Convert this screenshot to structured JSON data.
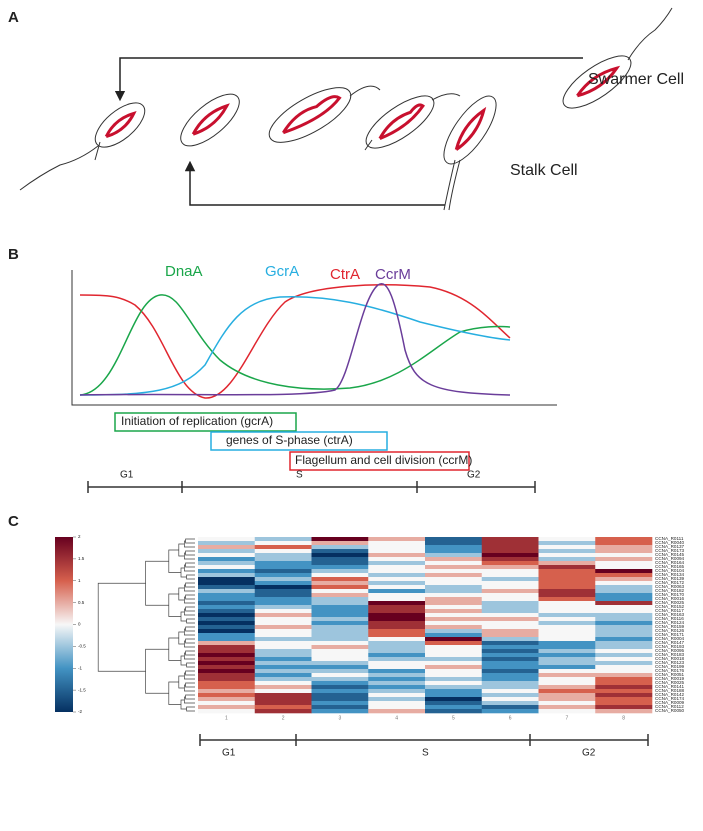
{
  "panel_a": {
    "label": "A",
    "swarmer": "Swarmer Cell",
    "stalk": "Stalk Cell"
  },
  "panel_b": {
    "label": "B",
    "curves": [
      "DnaA",
      "GcrA",
      "CtrA",
      "CcrM"
    ],
    "boxes": [
      "Initiation of replication (gcrA)",
      "genes of S-phase (ctrA)",
      "Flagellum and cell division (ccrM)"
    ],
    "phases": [
      "G1",
      "S",
      "G2"
    ]
  },
  "panel_c": {
    "label": "C",
    "phases": [
      "G1",
      "S",
      "G2"
    ],
    "heatmap": {
      "type": "heatmap",
      "column_labels": [
        "1",
        "2",
        "3",
        "4",
        "5",
        "6",
        "7",
        "8"
      ],
      "row_labels": [
        "CCNA_R0111",
        "CCNA_R0040",
        "CCNA_R0137",
        "CCNA_R0173",
        "CCNA_R0145",
        "CCNA_R0094",
        "CCNA_R0164",
        "CCNA_R0165",
        "CCNA_R0104",
        "CCNA_R0134",
        "CCNA_R0139",
        "CCNA_R0172",
        "CCNA_R0063",
        "CCNA_R0182",
        "CCNA_R0170",
        "CCNA_R0016",
        "CCNA_R0025",
        "CCNA_R0152",
        "CCNA_R0117",
        "CCNA_R0163",
        "CCNA_R0116",
        "CCNA_R0124",
        "CCNA_R0159",
        "CCNA_R0126",
        "CCNA_R0171",
        "CCNA_R0004",
        "CCNA_R0147",
        "CCNA_R0193",
        "CCNA_R0095",
        "CCNA_R0183",
        "CCNA_R0018",
        "CCNA_R0123",
        "CCNA_R0199",
        "CCNA_R0176",
        "CCNA_R0051",
        "CCNA_R0019",
        "CCNA_R0025",
        "CCNA_R0141",
        "CCNA_R0188",
        "CCNA_R0142",
        "CCNA_R0174",
        "CCNA_R0009",
        "CCNA_R0112",
        "CCNA_R0050"
      ],
      "values": [
        [
          0,
          -0.5,
          2,
          0.5,
          -1.5,
          1.5,
          0,
          1
        ],
        [
          -0.5,
          0,
          0.5,
          0,
          -1.5,
          1.5,
          -0.5,
          1
        ],
        [
          0.5,
          1,
          -0.5,
          0,
          -1,
          1.5,
          0,
          0.5
        ],
        [
          -0.5,
          0,
          -1.5,
          0,
          -1,
          1.5,
          -0.5,
          0.5
        ],
        [
          0,
          -0.5,
          -2,
          0.5,
          -0.5,
          2,
          0,
          0
        ],
        [
          -1,
          -0.5,
          -1.5,
          0,
          0.5,
          1.5,
          -0.5,
          0.5
        ],
        [
          -0.5,
          -1,
          -1.5,
          -0.5,
          0,
          1,
          0.5,
          0
        ],
        [
          0,
          -1,
          -1,
          0,
          0.5,
          0.5,
          1.5,
          0
        ],
        [
          -1,
          -1.5,
          -0.5,
          0,
          0,
          0,
          1,
          2
        ],
        [
          -0.5,
          -1,
          0,
          -0.5,
          0.5,
          0,
          1,
          1
        ],
        [
          -2,
          -0.5,
          1,
          0,
          0,
          -0.5,
          1,
          0.5
        ],
        [
          -2,
          -1,
          0.5,
          -0.5,
          0,
          0,
          1,
          0
        ],
        [
          -1.5,
          -2,
          1,
          0,
          -0.5,
          0,
          1,
          -0.5
        ],
        [
          -0.5,
          -1.5,
          0,
          -1,
          -0.5,
          0.5,
          1.5,
          -0.5
        ],
        [
          -1,
          -1.5,
          0.5,
          0,
          0,
          0,
          1.5,
          -1
        ],
        [
          -1,
          -1,
          -0.5,
          0,
          0.5,
          0,
          1,
          -1
        ],
        [
          -1.5,
          -1,
          -0.5,
          2,
          0.5,
          -0.5,
          0,
          1.5
        ],
        [
          -1,
          -0.5,
          -1,
          1.5,
          0,
          -0.5,
          0,
          0
        ],
        [
          -1.5,
          0,
          -1,
          1.5,
          0.5,
          -0.5,
          0,
          0
        ],
        [
          -2,
          0.5,
          -1,
          2,
          0,
          0,
          -0.5,
          -0.5
        ],
        [
          -1.5,
          0,
          -0.5,
          2,
          0.5,
          0.5,
          0,
          -0.5
        ],
        [
          -2,
          0,
          -1,
          1.5,
          0,
          0,
          -0.5,
          -1
        ],
        [
          -1.5,
          0.5,
          -0.5,
          1.5,
          0.5,
          0,
          0,
          -0.5
        ],
        [
          -2,
          0,
          -0.5,
          1,
          -0.5,
          0.5,
          0,
          -0.5
        ],
        [
          -1,
          0,
          -0.5,
          1,
          -1,
          0.5,
          0,
          -0.5
        ],
        [
          -1,
          -0.5,
          -0.5,
          0,
          2,
          -0.5,
          0,
          -1
        ],
        [
          0.5,
          0,
          0,
          -0.5,
          1,
          -1.5,
          -1,
          -0.5
        ],
        [
          1.5,
          0,
          0.5,
          -0.5,
          0,
          -1,
          -1,
          -0.5
        ],
        [
          1.5,
          -0.5,
          0,
          -0.5,
          0,
          -1.5,
          -0.5,
          0
        ],
        [
          2,
          -0.5,
          0,
          -1,
          0,
          -1,
          -1,
          -0.5
        ],
        [
          1.5,
          -1,
          0,
          -0.5,
          -0.5,
          -1.5,
          -0.5,
          0
        ],
        [
          2,
          -0.5,
          -0.5,
          0,
          0,
          -1,
          -0.5,
          -0.5
        ],
        [
          1.5,
          -1,
          -1,
          0,
          0.5,
          -1,
          -1,
          0
        ],
        [
          2,
          -0.5,
          -0.5,
          -1,
          0,
          -1.5,
          0,
          0
        ],
        [
          1.5,
          -1,
          0,
          -0.5,
          0,
          -1,
          0.5,
          0.5
        ],
        [
          1.5,
          -0.5,
          -0.5,
          -1,
          -0.5,
          -1,
          0,
          1
        ],
        [
          1,
          0,
          -1,
          -0.5,
          0,
          -0.5,
          0,
          1
        ],
        [
          1,
          0.5,
          -1.5,
          -1,
          -0.5,
          -0.5,
          0.5,
          1.5
        ],
        [
          0.5,
          0,
          -1,
          -0.5,
          -1,
          0,
          1,
          1
        ],
        [
          1,
          1.5,
          -1.5,
          0,
          -1,
          -0.5,
          0.5,
          1.5
        ],
        [
          0.5,
          1.5,
          -1.5,
          -0.5,
          -2,
          0,
          0.5,
          1
        ],
        [
          0,
          1.5,
          -1,
          0,
          -1.5,
          -0.5,
          0,
          1
        ],
        [
          0.5,
          1,
          -1.5,
          0,
          -1,
          -1.5,
          0.5,
          1.5
        ],
        [
          0,
          1.5,
          -1,
          0.5,
          -1.5,
          -1,
          0,
          0.5
        ]
      ],
      "clim": [
        -2,
        2
      ],
      "colorbar_ticks": [
        2,
        1.5,
        1,
        0.5,
        0,
        -0.5,
        -1,
        -1.5,
        -2
      ]
    }
  }
}
